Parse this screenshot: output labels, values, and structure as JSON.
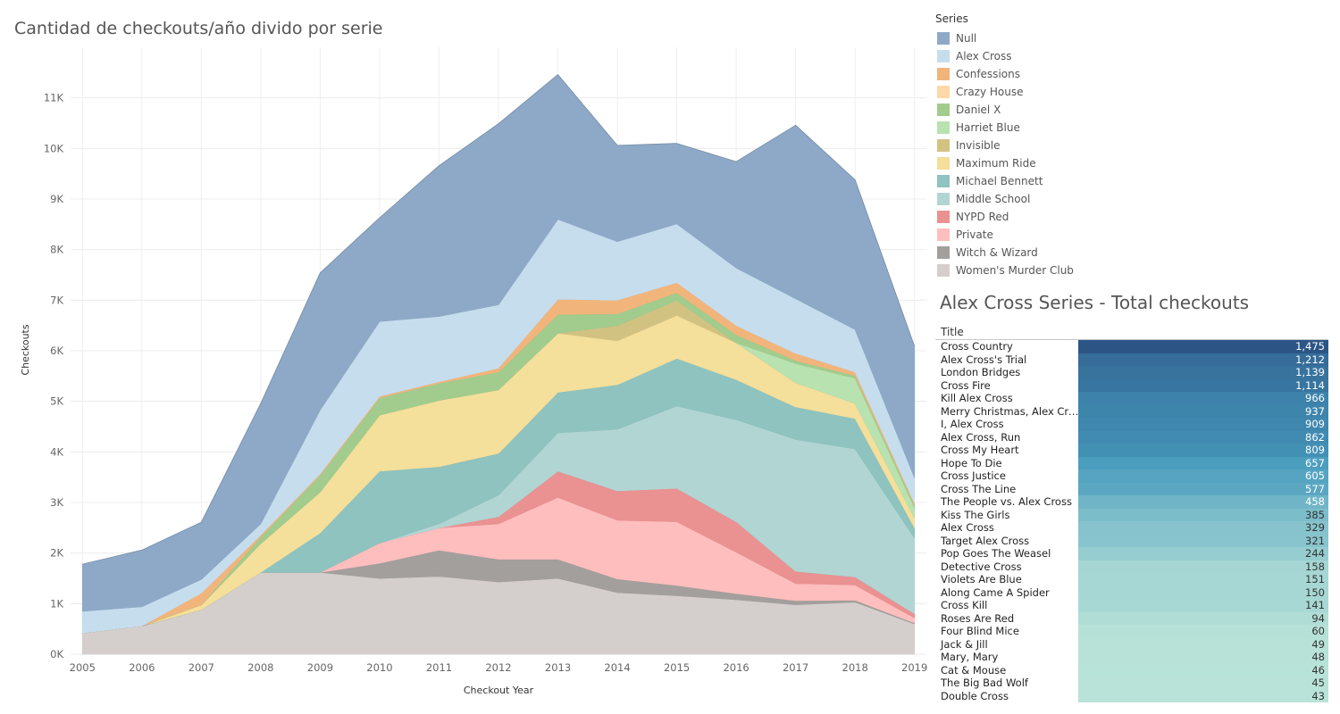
{
  "title": "Cantidad de checkouts/año divido por serie",
  "chart_data": {
    "type": "area",
    "stacked": true,
    "title": "Cantidad de checkouts/año divido por serie",
    "xlabel": "Checkout Year",
    "ylabel": "Checkouts",
    "ylim": [
      0,
      12000
    ],
    "y_ticks": [
      0,
      1000,
      2000,
      3000,
      4000,
      5000,
      6000,
      7000,
      8000,
      9000,
      10000,
      11000
    ],
    "y_tick_labels": [
      "0K",
      "1K",
      "2K",
      "3K",
      "4K",
      "5K",
      "6K",
      "7K",
      "8K",
      "9K",
      "10K",
      "11K"
    ],
    "x": [
      2005,
      2006,
      2007,
      2008,
      2009,
      2010,
      2011,
      2012,
      2013,
      2014,
      2015,
      2016,
      2017,
      2018,
      2019
    ],
    "x_tick_labels": [
      "2005",
      "2006",
      "2007",
      "2008",
      "2009",
      "2010",
      "2011",
      "2012",
      "2013",
      "2014",
      "2015",
      "2016",
      "2017",
      "2018",
      "2019"
    ],
    "grid": true,
    "legend_position": "right",
    "series": [
      {
        "name": "Women's Murder Club",
        "color": "#d4cfcd",
        "values": [
          420,
          560,
          880,
          1620,
          1620,
          1500,
          1540,
          1430,
          1500,
          1220,
          1160,
          1080,
          980,
          1030,
          600
        ]
      },
      {
        "name": "Witch & Wizard",
        "color": "#a39f9c",
        "values": [
          0,
          0,
          0,
          0,
          0,
          300,
          520,
          450,
          380,
          270,
          200,
          120,
          80,
          40,
          20
        ]
      },
      {
        "name": "Private",
        "color": "#ffbebe",
        "values": [
          0,
          0,
          0,
          0,
          0,
          400,
          440,
          700,
          1220,
          1160,
          1260,
          820,
          340,
          300,
          100
        ]
      },
      {
        "name": "NYPD Red",
        "color": "#ea9192",
        "values": [
          0,
          0,
          0,
          0,
          0,
          0,
          0,
          140,
          520,
          580,
          660,
          600,
          240,
          160,
          80
        ]
      },
      {
        "name": "Middle School",
        "color": "#b1d5d2",
        "values": [
          0,
          0,
          0,
          0,
          0,
          0,
          80,
          430,
          760,
          1220,
          1630,
          2020,
          2610,
          2530,
          1500
        ]
      },
      {
        "name": "Michael Bennett",
        "color": "#8ec3bf",
        "values": [
          0,
          0,
          0,
          0,
          780,
          1420,
          1130,
          820,
          800,
          880,
          940,
          790,
          640,
          600,
          200
        ]
      },
      {
        "name": "Maximum Ride",
        "color": "#f4df9b",
        "values": [
          0,
          0,
          100,
          570,
          810,
          1110,
          1310,
          1260,
          1170,
          870,
          850,
          730,
          480,
          300,
          200
        ]
      },
      {
        "name": "Invisible",
        "color": "#d2c282",
        "values": [
          0,
          0,
          0,
          0,
          0,
          0,
          0,
          0,
          0,
          300,
          300,
          0,
          0,
          0,
          0
        ]
      },
      {
        "name": "Harriet Blue",
        "color": "#b8e2b0",
        "values": [
          0,
          0,
          0,
          0,
          0,
          0,
          0,
          0,
          0,
          0,
          0,
          0,
          380,
          500,
          200
        ]
      },
      {
        "name": "Daniel X",
        "color": "#a1cc8d",
        "values": [
          0,
          0,
          0,
          130,
          330,
          340,
          340,
          350,
          370,
          230,
          150,
          160,
          60,
          50,
          50
        ]
      },
      {
        "name": "Crazy House",
        "color": "#ffd8a8",
        "values": [
          0,
          0,
          0,
          0,
          0,
          0,
          0,
          0,
          0,
          0,
          0,
          0,
          0,
          0,
          0
        ]
      },
      {
        "name": "Confessions",
        "color": "#f1b57c",
        "values": [
          0,
          0,
          230,
          40,
          30,
          30,
          30,
          80,
          300,
          270,
          200,
          180,
          140,
          70,
          40
        ]
      },
      {
        "name": "Alex Cross",
        "color": "#c6ddee",
        "values": [
          430,
          380,
          270,
          220,
          1260,
          1480,
          1290,
          1250,
          1580,
          1160,
          1160,
          1140,
          1080,
          840,
          500
        ]
      },
      {
        "name": "Null",
        "color": "#8ea9c7",
        "values": [
          930,
          1120,
          1130,
          2380,
          2710,
          2050,
          2980,
          3580,
          2860,
          1900,
          1590,
          2100,
          3430,
          2960,
          2600
        ]
      }
    ]
  },
  "legend": {
    "title": "Series",
    "items": [
      {
        "label": "Null",
        "color": "#8ea9c7"
      },
      {
        "label": "Alex Cross",
        "color": "#c6ddee"
      },
      {
        "label": "Confessions",
        "color": "#f1b57c"
      },
      {
        "label": "Crazy House",
        "color": "#ffd8a8"
      },
      {
        "label": "Daniel X",
        "color": "#a1cc8d"
      },
      {
        "label": "Harriet Blue",
        "color": "#b8e2b0"
      },
      {
        "label": "Invisible",
        "color": "#d2c282"
      },
      {
        "label": "Maximum Ride",
        "color": "#f4df9b"
      },
      {
        "label": "Michael Bennett",
        "color": "#8ec3bf"
      },
      {
        "label": "Middle School",
        "color": "#b1d5d2"
      },
      {
        "label": "NYPD Red",
        "color": "#ea9192"
      },
      {
        "label": "Private",
        "color": "#ffbebe"
      },
      {
        "label": "Witch & Wizard",
        "color": "#a39f9c"
      },
      {
        "label": "Women's Murder Club",
        "color": "#d4cfcd"
      }
    ]
  },
  "table": {
    "title": "Alex Cross Series - Total checkouts",
    "column_header": "Title",
    "color_low": "#b9e3d8",
    "color_high": "#2c5586",
    "rows": [
      {
        "title": "Cross Country",
        "value": 1475,
        "value_label": "1,475"
      },
      {
        "title": "Alex Cross's Trial",
        "value": 1212,
        "value_label": "1,212"
      },
      {
        "title": "London Bridges",
        "value": 1139,
        "value_label": "1,139"
      },
      {
        "title": "Cross Fire",
        "value": 1114,
        "value_label": "1,114"
      },
      {
        "title": "Kill Alex Cross",
        "value": 966,
        "value_label": "966"
      },
      {
        "title": "Merry Christmas, Alex Cro..",
        "value": 937,
        "value_label": "937"
      },
      {
        "title": "I, Alex Cross",
        "value": 909,
        "value_label": "909"
      },
      {
        "title": "Alex Cross, Run",
        "value": 862,
        "value_label": "862"
      },
      {
        "title": "Cross My Heart",
        "value": 809,
        "value_label": "809"
      },
      {
        "title": "Hope To Die",
        "value": 657,
        "value_label": "657"
      },
      {
        "title": "Cross Justice",
        "value": 605,
        "value_label": "605"
      },
      {
        "title": "Cross The Line",
        "value": 577,
        "value_label": "577"
      },
      {
        "title": "The People vs. Alex Cross",
        "value": 458,
        "value_label": "458"
      },
      {
        "title": "Kiss The Girls",
        "value": 385,
        "value_label": "385"
      },
      {
        "title": "Alex Cross",
        "value": 329,
        "value_label": "329"
      },
      {
        "title": "Target Alex Cross",
        "value": 321,
        "value_label": "321"
      },
      {
        "title": "Pop Goes The Weasel",
        "value": 244,
        "value_label": "244"
      },
      {
        "title": "Detective Cross",
        "value": 158,
        "value_label": "158"
      },
      {
        "title": "Violets Are Blue",
        "value": 151,
        "value_label": "151"
      },
      {
        "title": "Along Came A Spider",
        "value": 150,
        "value_label": "150"
      },
      {
        "title": "Cross Kill",
        "value": 141,
        "value_label": "141"
      },
      {
        "title": "Roses Are Red",
        "value": 94,
        "value_label": "94"
      },
      {
        "title": "Four Blind Mice",
        "value": 60,
        "value_label": "60"
      },
      {
        "title": "Jack & Jill",
        "value": 49,
        "value_label": "49"
      },
      {
        "title": "Mary, Mary",
        "value": 48,
        "value_label": "48"
      },
      {
        "title": "Cat & Mouse",
        "value": 46,
        "value_label": "46"
      },
      {
        "title": "The Big Bad Wolf",
        "value": 45,
        "value_label": "45"
      },
      {
        "title": "Double Cross",
        "value": 43,
        "value_label": "43"
      }
    ]
  }
}
